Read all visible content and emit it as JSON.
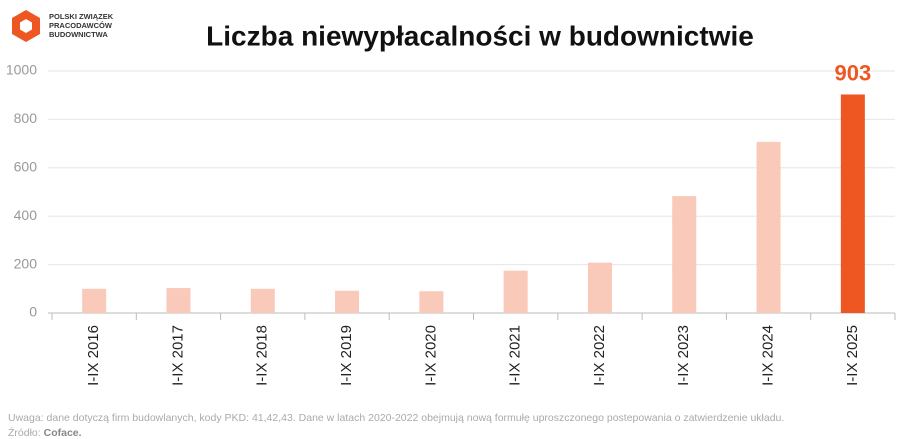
{
  "logo": {
    "lines": [
      "POLSKI ZWIĄZEK",
      "PRACODAWCÓW",
      "BUDOWNICTWA"
    ]
  },
  "chart_data": {
    "type": "bar",
    "title": "Liczba niewypłacalności w budownictwie",
    "categories": [
      "I-IX 2016",
      "I-IX 2017",
      "I-IX 2018",
      "I-IX 2019",
      "I-IX 2020",
      "I-IX 2021",
      "I-IX 2022",
      "I-IX 2023",
      "I-IX 2024",
      "I-IX 2025"
    ],
    "values": [
      100,
      103,
      100,
      92,
      90,
      175,
      208,
      483,
      707,
      903
    ],
    "value_labels": [
      null,
      null,
      null,
      null,
      null,
      null,
      null,
      null,
      null,
      "903"
    ],
    "colors": [
      "#f9c9b9",
      "#f9c9b9",
      "#f9c9b9",
      "#f9c9b9",
      "#f9c9b9",
      "#f9c9b9",
      "#f9c9b9",
      "#f9c9b9",
      "#f9c9b9",
      "#ee5722"
    ],
    "ylim": [
      0,
      1000
    ],
    "yticks": [
      0,
      200,
      400,
      600,
      800,
      1000
    ],
    "grid": true
  },
  "footnote": {
    "note": "Uwaga: dane dotyczą firm budowlanych, kody PKD: 41,42,43. Dane w latach 2020-2022 obejmują nową formułę uproszczonego postepowania o zatwierdzenie układu.",
    "source_prefix": "Źródło:",
    "source": "Coface."
  }
}
